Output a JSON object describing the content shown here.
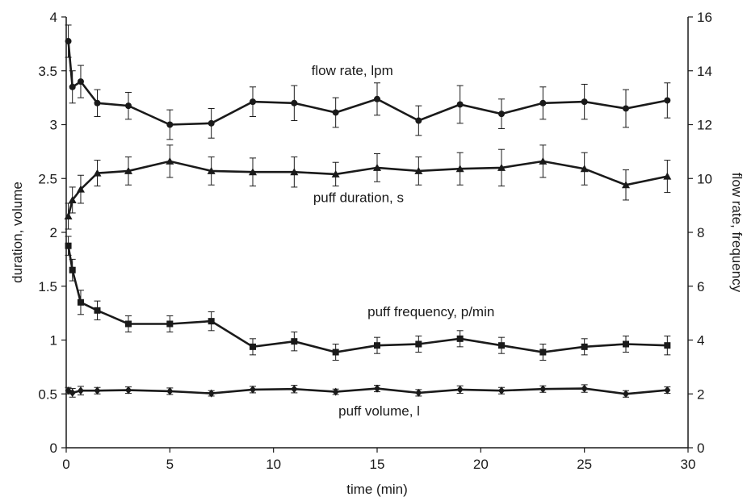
{
  "chart_data": {
    "type": "line",
    "xlabel": "time (min)",
    "ylabel_left": "duration, volume",
    "ylabel_right": "flow rate, frequency",
    "xlim": [
      0,
      30
    ],
    "ylim_left": [
      0,
      4
    ],
    "ylim_right": [
      0,
      16
    ],
    "x_ticks": [
      0,
      5,
      10,
      15,
      20,
      25,
      30
    ],
    "y_ticks_left": [
      0,
      0.5,
      1,
      1.5,
      2,
      2.5,
      3,
      3.5,
      4
    ],
    "y_ticks_right": [
      0,
      2,
      4,
      6,
      8,
      10,
      12,
      14,
      16
    ],
    "grid": false,
    "legend": "none (series labeled directly on plot)",
    "series": [
      {
        "name": "flow rate, lpm",
        "axis": "right",
        "marker": "circle",
        "x": [
          0.1,
          0.3,
          0.7,
          1.5,
          3,
          5,
          7,
          9,
          11,
          13,
          15,
          17,
          19,
          21,
          23,
          25,
          27,
          29
        ],
        "values": [
          15.1,
          13.4,
          13.6,
          12.8,
          12.7,
          12.0,
          12.05,
          12.85,
          12.8,
          12.45,
          12.95,
          12.15,
          12.75,
          12.4,
          12.8,
          12.85,
          12.6,
          12.9
        ],
        "errors": [
          0.6,
          0.6,
          0.6,
          0.5,
          0.5,
          0.55,
          0.55,
          0.55,
          0.65,
          0.55,
          0.6,
          0.55,
          0.7,
          0.55,
          0.6,
          0.65,
          0.7,
          0.65
        ]
      },
      {
        "name": "puff duration, s",
        "axis": "left",
        "marker": "triangle",
        "x": [
          0.1,
          0.3,
          0.7,
          1.5,
          3,
          5,
          7,
          9,
          11,
          13,
          15,
          17,
          19,
          21,
          23,
          25,
          27,
          29
        ],
        "values": [
          2.15,
          2.3,
          2.4,
          2.55,
          2.57,
          2.66,
          2.57,
          2.56,
          2.56,
          2.54,
          2.6,
          2.57,
          2.59,
          2.6,
          2.66,
          2.59,
          2.44,
          2.52
        ],
        "errors": [
          0.12,
          0.12,
          0.13,
          0.12,
          0.13,
          0.15,
          0.13,
          0.13,
          0.14,
          0.11,
          0.13,
          0.13,
          0.15,
          0.17,
          0.15,
          0.15,
          0.14,
          0.15
        ]
      },
      {
        "name": "puff frequency, p/min",
        "axis": "right",
        "marker": "square",
        "x": [
          0.1,
          0.3,
          0.7,
          1.5,
          3,
          5,
          7,
          9,
          11,
          13,
          15,
          17,
          19,
          21,
          23,
          25,
          27,
          29
        ],
        "values": [
          7.5,
          6.6,
          5.4,
          5.1,
          4.6,
          4.6,
          4.7,
          3.75,
          3.95,
          3.55,
          3.8,
          3.85,
          4.05,
          3.8,
          3.55,
          3.75,
          3.85,
          3.8
        ],
        "errors": [
          0.35,
          0.4,
          0.45,
          0.35,
          0.3,
          0.3,
          0.35,
          0.3,
          0.35,
          0.3,
          0.3,
          0.3,
          0.3,
          0.3,
          0.3,
          0.3,
          0.3,
          0.35
        ]
      },
      {
        "name": "puff volume, l",
        "axis": "left",
        "marker": "diamond",
        "x": [
          0.1,
          0.3,
          0.7,
          1.5,
          3,
          5,
          7,
          9,
          11,
          13,
          15,
          17,
          19,
          21,
          23,
          25,
          27,
          29
        ],
        "values": [
          0.53,
          0.51,
          0.53,
          0.53,
          0.535,
          0.525,
          0.505,
          0.54,
          0.545,
          0.52,
          0.55,
          0.51,
          0.54,
          0.53,
          0.545,
          0.55,
          0.5,
          0.535
        ],
        "errors": [
          0.03,
          0.04,
          0.04,
          0.03,
          0.03,
          0.03,
          0.025,
          0.03,
          0.035,
          0.025,
          0.03,
          0.03,
          0.035,
          0.03,
          0.03,
          0.035,
          0.03,
          0.03
        ]
      }
    ],
    "series_label_anchors": [
      {
        "x": 13.8,
        "y_left": 3.46
      },
      {
        "x": 14.1,
        "y_left": 2.28
      },
      {
        "x": 17.6,
        "y_left": 1.22
      },
      {
        "x": 15.1,
        "y_left": 0.3
      }
    ]
  }
}
